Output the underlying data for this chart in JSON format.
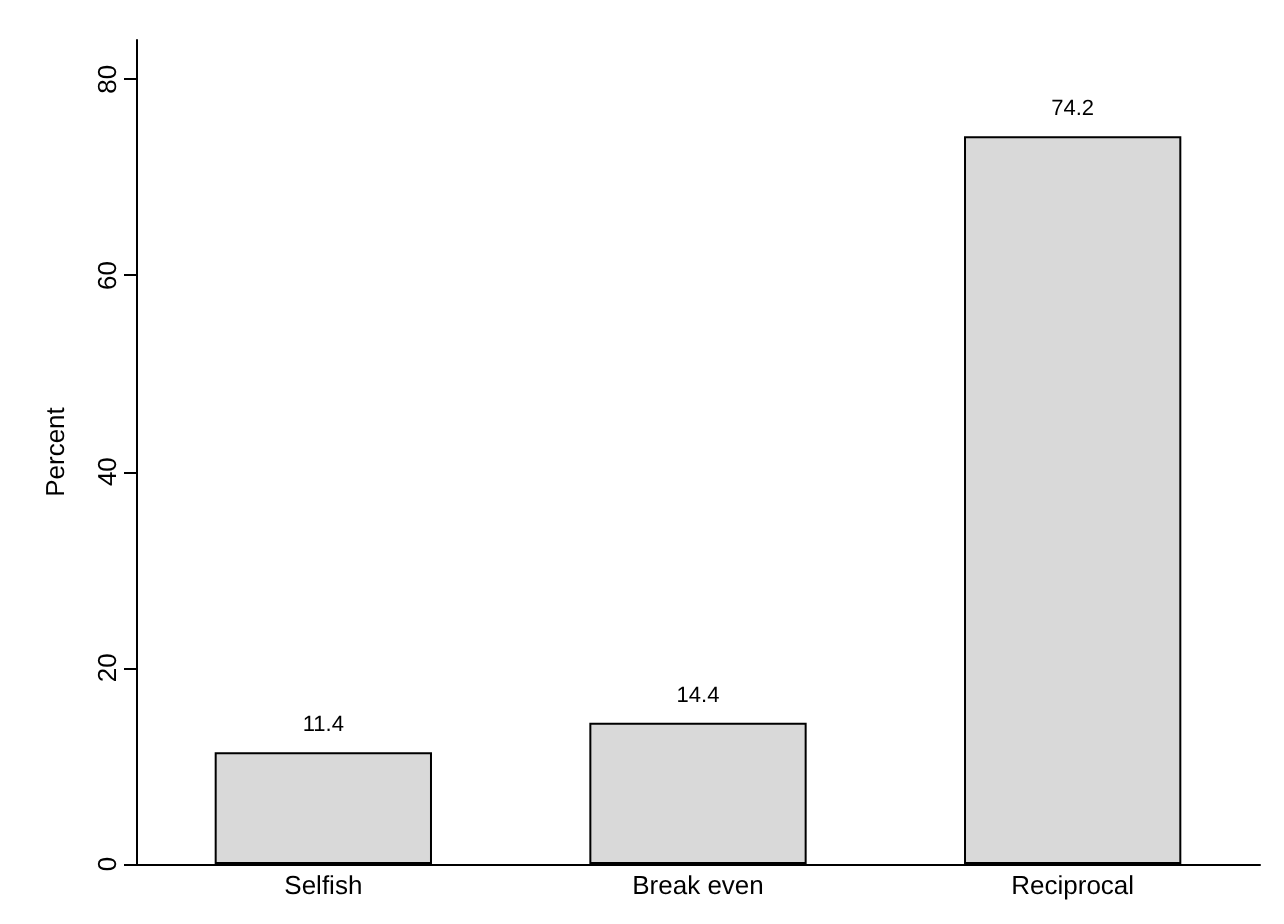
{
  "chart_data": {
    "type": "bar",
    "ylabel": "Percent",
    "categories": [
      "Selfish",
      "Break even",
      "Reciprocal"
    ],
    "values": [
      11.4,
      14.4,
      74.2
    ],
    "color": "#d9d9d9",
    "ylim": [
      0,
      84
    ],
    "yticks": [
      0,
      20,
      40,
      60,
      80
    ],
    "data_labels": true
  }
}
